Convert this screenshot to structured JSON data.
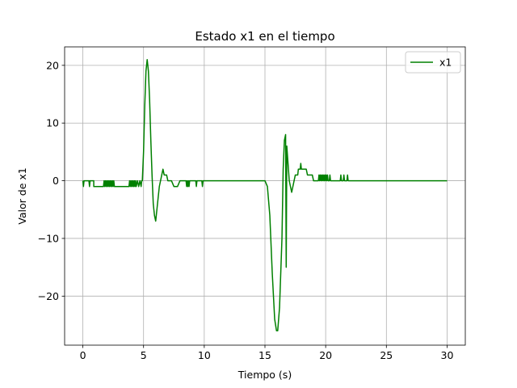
{
  "chart_data": {
    "type": "line",
    "title": "Estado x1 en el tiempo",
    "xlabel": "Tiempo (s)",
    "ylabel": "Valor de x1",
    "xlim": [
      -1.5,
      31.5
    ],
    "ylim": [
      -28.5,
      23.2
    ],
    "xticks": [
      0,
      5,
      10,
      15,
      20,
      25,
      30
    ],
    "xtick_labels": [
      "0",
      "5",
      "10",
      "15",
      "20",
      "25",
      "30"
    ],
    "yticks": [
      -20,
      -10,
      0,
      10,
      20
    ],
    "ytick_labels": [
      "−20",
      "−10",
      "0",
      "10",
      "20"
    ],
    "grid": true,
    "legend_position": "top-right",
    "series": [
      {
        "name": "x1",
        "color": "#008000",
        "points": [
          [
            0,
            0
          ],
          [
            0.05,
            -1
          ],
          [
            0.1,
            0
          ],
          [
            0.5,
            0
          ],
          [
            0.55,
            -1
          ],
          [
            0.6,
            0
          ],
          [
            0.6,
            0
          ],
          [
            0.6,
            0
          ],
          [
            0.6,
            0
          ],
          [
            0.6,
            0
          ],
          [
            0.6,
            0
          ],
          [
            0.55,
            0
          ],
          [
            0.55,
            0
          ],
          [
            0.55,
            0
          ],
          [
            0.55,
            -1
          ],
          [
            0.55,
            0
          ],
          [
            0.6,
            0
          ],
          [
            0.6,
            0
          ],
          [
            0.55,
            -1
          ],
          [
            0.6,
            0
          ],
          [
            0.65,
            0
          ],
          [
            0.7,
            0
          ],
          [
            0.75,
            0
          ],
          [
            0.8,
            0
          ],
          [
            0.8,
            0
          ],
          [
            0.85,
            0
          ],
          [
            0.9,
            0
          ],
          [
            0.9,
            -1
          ],
          [
            1.6,
            -1
          ],
          [
            1.7,
            -1
          ],
          [
            1.75,
            0
          ],
          [
            1.8,
            -1
          ],
          [
            1.85,
            0
          ],
          [
            1.9,
            -1
          ],
          [
            1.95,
            0
          ],
          [
            2.0,
            -1
          ],
          [
            2.05,
            0
          ],
          [
            2.1,
            -1
          ],
          [
            2.15,
            0
          ],
          [
            2.2,
            -1
          ],
          [
            2.25,
            0
          ],
          [
            2.3,
            -1
          ],
          [
            2.35,
            0
          ],
          [
            2.4,
            -1
          ],
          [
            2.45,
            0
          ],
          [
            2.5,
            -1
          ],
          [
            2.55,
            0
          ],
          [
            2.6,
            -1
          ],
          [
            3.8,
            -1
          ],
          [
            3.85,
            0
          ],
          [
            3.9,
            -1
          ],
          [
            3.95,
            0
          ],
          [
            4.0,
            -1
          ],
          [
            4.05,
            0
          ],
          [
            4.1,
            -1
          ],
          [
            4.15,
            0
          ],
          [
            4.2,
            -1
          ],
          [
            4.25,
            0
          ],
          [
            4.3,
            -1
          ],
          [
            4.35,
            0
          ],
          [
            4.4,
            -1
          ],
          [
            4.5,
            0
          ],
          [
            4.6,
            -1
          ],
          [
            4.7,
            0
          ],
          [
            4.8,
            -1
          ],
          [
            4.85,
            0
          ],
          [
            4.9,
            0
          ],
          [
            5.0,
            5
          ],
          [
            5.1,
            13
          ],
          [
            5.2,
            19
          ],
          [
            5.3,
            21
          ],
          [
            5.4,
            19
          ],
          [
            5.5,
            14
          ],
          [
            5.6,
            7
          ],
          [
            5.7,
            1
          ],
          [
            5.8,
            -4
          ],
          [
            5.9,
            -6
          ],
          [
            6.0,
            -7
          ],
          [
            6.1,
            -5
          ],
          [
            6.2,
            -3
          ],
          [
            6.3,
            -1
          ],
          [
            6.4,
            0
          ],
          [
            6.5,
            1
          ],
          [
            6.6,
            2
          ],
          [
            6.7,
            1
          ],
          [
            6.8,
            1
          ],
          [
            6.9,
            1
          ],
          [
            7.0,
            0
          ],
          [
            7.3,
            0
          ],
          [
            7.5,
            -1
          ],
          [
            7.8,
            -1
          ],
          [
            8.0,
            0
          ],
          [
            8.5,
            0
          ],
          [
            8.55,
            -1
          ],
          [
            8.6,
            0
          ],
          [
            8.65,
            -1
          ],
          [
            8.7,
            0
          ],
          [
            8.75,
            -1
          ],
          [
            8.8,
            0
          ],
          [
            9.3,
            0
          ],
          [
            9.35,
            -1
          ],
          [
            9.4,
            0
          ],
          [
            9.8,
            0
          ],
          [
            9.85,
            -1
          ],
          [
            9.9,
            0
          ],
          [
            15.0,
            0
          ],
          [
            15.2,
            -1
          ],
          [
            15.4,
            -6
          ],
          [
            15.6,
            -16
          ],
          [
            15.8,
            -24
          ],
          [
            15.95,
            -26
          ],
          [
            16.05,
            -26
          ],
          [
            16.2,
            -22
          ],
          [
            16.4,
            -10
          ],
          [
            16.5,
            2
          ],
          [
            16.6,
            7
          ],
          [
            16.7,
            8
          ],
          [
            16.75,
            -15
          ],
          [
            16.8,
            6
          ],
          [
            16.9,
            3
          ],
          [
            17.0,
            0
          ],
          [
            17.1,
            -1
          ],
          [
            17.2,
            -2
          ],
          [
            17.3,
            -1
          ],
          [
            17.4,
            0
          ],
          [
            17.5,
            1
          ],
          [
            17.6,
            1
          ],
          [
            17.7,
            1
          ],
          [
            17.75,
            2
          ],
          [
            17.8,
            2
          ],
          [
            17.9,
            2
          ],
          [
            17.95,
            3
          ],
          [
            18.0,
            2
          ],
          [
            18.1,
            2
          ],
          [
            18.4,
            2
          ],
          [
            18.5,
            1
          ],
          [
            18.9,
            1
          ],
          [
            19.0,
            0
          ],
          [
            19.4,
            0
          ],
          [
            19.45,
            1
          ],
          [
            19.5,
            0
          ],
          [
            19.55,
            1
          ],
          [
            19.6,
            0
          ],
          [
            19.65,
            1
          ],
          [
            19.7,
            0
          ],
          [
            19.75,
            1
          ],
          [
            19.8,
            0
          ],
          [
            19.85,
            1
          ],
          [
            19.9,
            0
          ],
          [
            19.95,
            1
          ],
          [
            20.0,
            0
          ],
          [
            20.05,
            1
          ],
          [
            20.1,
            0
          ],
          [
            20.15,
            1
          ],
          [
            20.2,
            0
          ],
          [
            20.3,
            0
          ],
          [
            20.35,
            1
          ],
          [
            20.4,
            0
          ],
          [
            21.2,
            0
          ],
          [
            21.25,
            1
          ],
          [
            21.3,
            0
          ],
          [
            21.45,
            0
          ],
          [
            21.5,
            1
          ],
          [
            21.55,
            0
          ],
          [
            21.75,
            0
          ],
          [
            21.8,
            1
          ],
          [
            21.85,
            0
          ],
          [
            30,
            0
          ]
        ]
      }
    ]
  }
}
